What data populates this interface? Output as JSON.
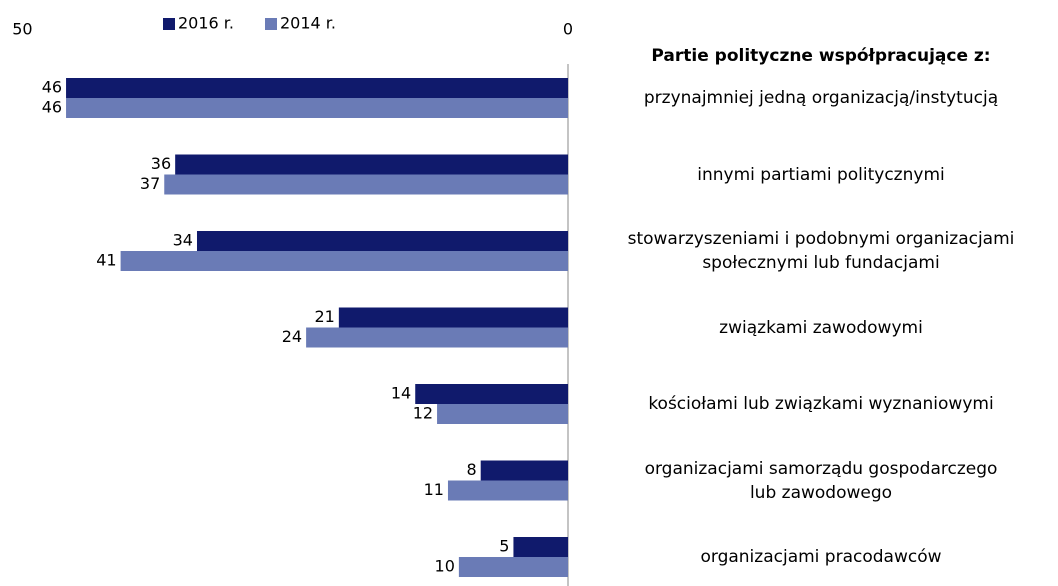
{
  "chart_data": {
    "type": "hbar",
    "title": "Partie polityczne współpracujące z:",
    "categories": [
      "przynajmniej jedną organizacją/instytucją",
      "innymi partiami politycznymi",
      "stowarzyszeniami i podobnymi organizacjami\nspołecznymi lub fundacjami",
      "związkami zawodowymi",
      "kościołami lub związkami wyznaniowymi",
      "organizacjami samorządu gospodarczego\nlub zawodowego",
      "organizacjami pracodawców"
    ],
    "series": [
      {
        "name": "2016 r.",
        "color": "#101a6c",
        "values": [
          46,
          36,
          34,
          21,
          14,
          8,
          5
        ]
      },
      {
        "name": "2014 r.",
        "color": "#6a7bb6",
        "values": [
          46,
          37,
          41,
          24,
          12,
          11,
          10
        ]
      }
    ],
    "xlim": [
      0,
      50
    ],
    "xticks": [
      0,
      50
    ],
    "x_reversed": true
  }
}
